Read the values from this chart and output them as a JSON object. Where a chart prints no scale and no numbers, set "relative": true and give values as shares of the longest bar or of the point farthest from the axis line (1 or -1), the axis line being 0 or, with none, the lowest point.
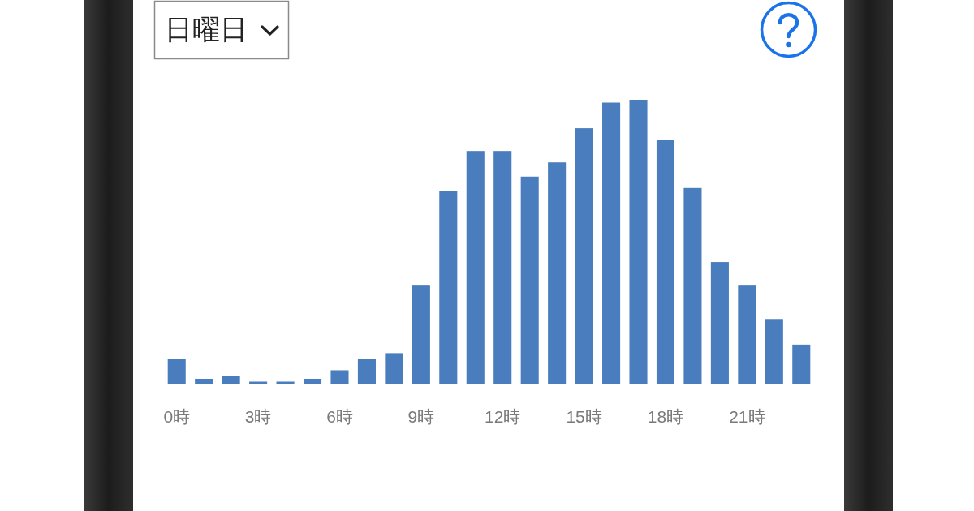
{
  "chart_data": {
    "type": "bar",
    "title": "日曜日",
    "relative": true,
    "categories": [
      "0時",
      null,
      null,
      "3時",
      null,
      null,
      "6時",
      null,
      null,
      "9時",
      null,
      null,
      "12時",
      null,
      null,
      "15時",
      null,
      null,
      "18時",
      null,
      null,
      "21時",
      null,
      null
    ],
    "values": [
      0.09,
      0.02,
      0.03,
      0.01,
      0.01,
      0.02,
      0.05,
      0.09,
      0.11,
      0.35,
      0.68,
      0.82,
      0.82,
      0.73,
      0.78,
      0.9,
      0.99,
      1,
      0.86,
      0.69,
      0.43,
      0.35,
      0.23,
      0.14
    ],
    "color": "#4a7dbd"
  }
}
